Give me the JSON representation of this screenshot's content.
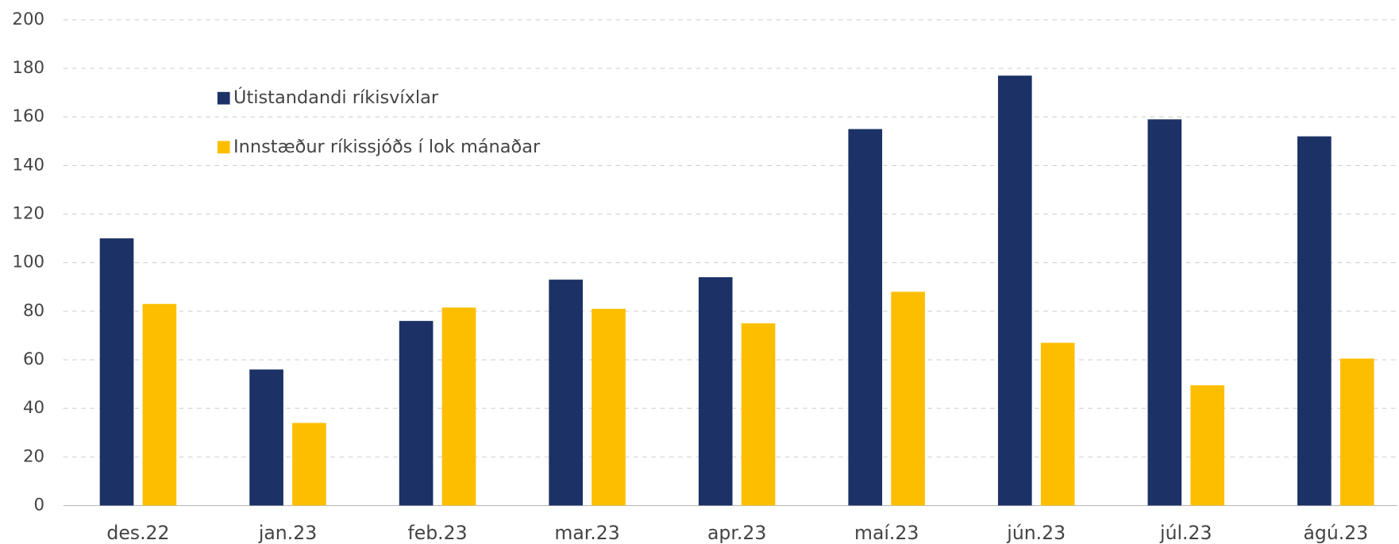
{
  "chart_data": {
    "type": "bar",
    "categories": [
      "des.22",
      "jan.23",
      "feb.23",
      "mar.23",
      "apr.23",
      "maí.23",
      "jún.23",
      "júl.23",
      "ágú.23"
    ],
    "series": [
      {
        "name": "Útistandandi ríkisvíxlar",
        "color": "#1c3166",
        "values": [
          110,
          56,
          76,
          93,
          94,
          155,
          177,
          159,
          152
        ]
      },
      {
        "name": "Innstæður ríkissjóðs í lok mánaðar",
        "color": "#fdbe00",
        "values": [
          83,
          34,
          81.5,
          81,
          75,
          88,
          67,
          49.5,
          60.5
        ]
      }
    ],
    "ylim": [
      0,
      200
    ],
    "yticks": [
      0,
      20,
      40,
      60,
      80,
      100,
      120,
      140,
      160,
      180,
      200
    ],
    "grid": true
  }
}
